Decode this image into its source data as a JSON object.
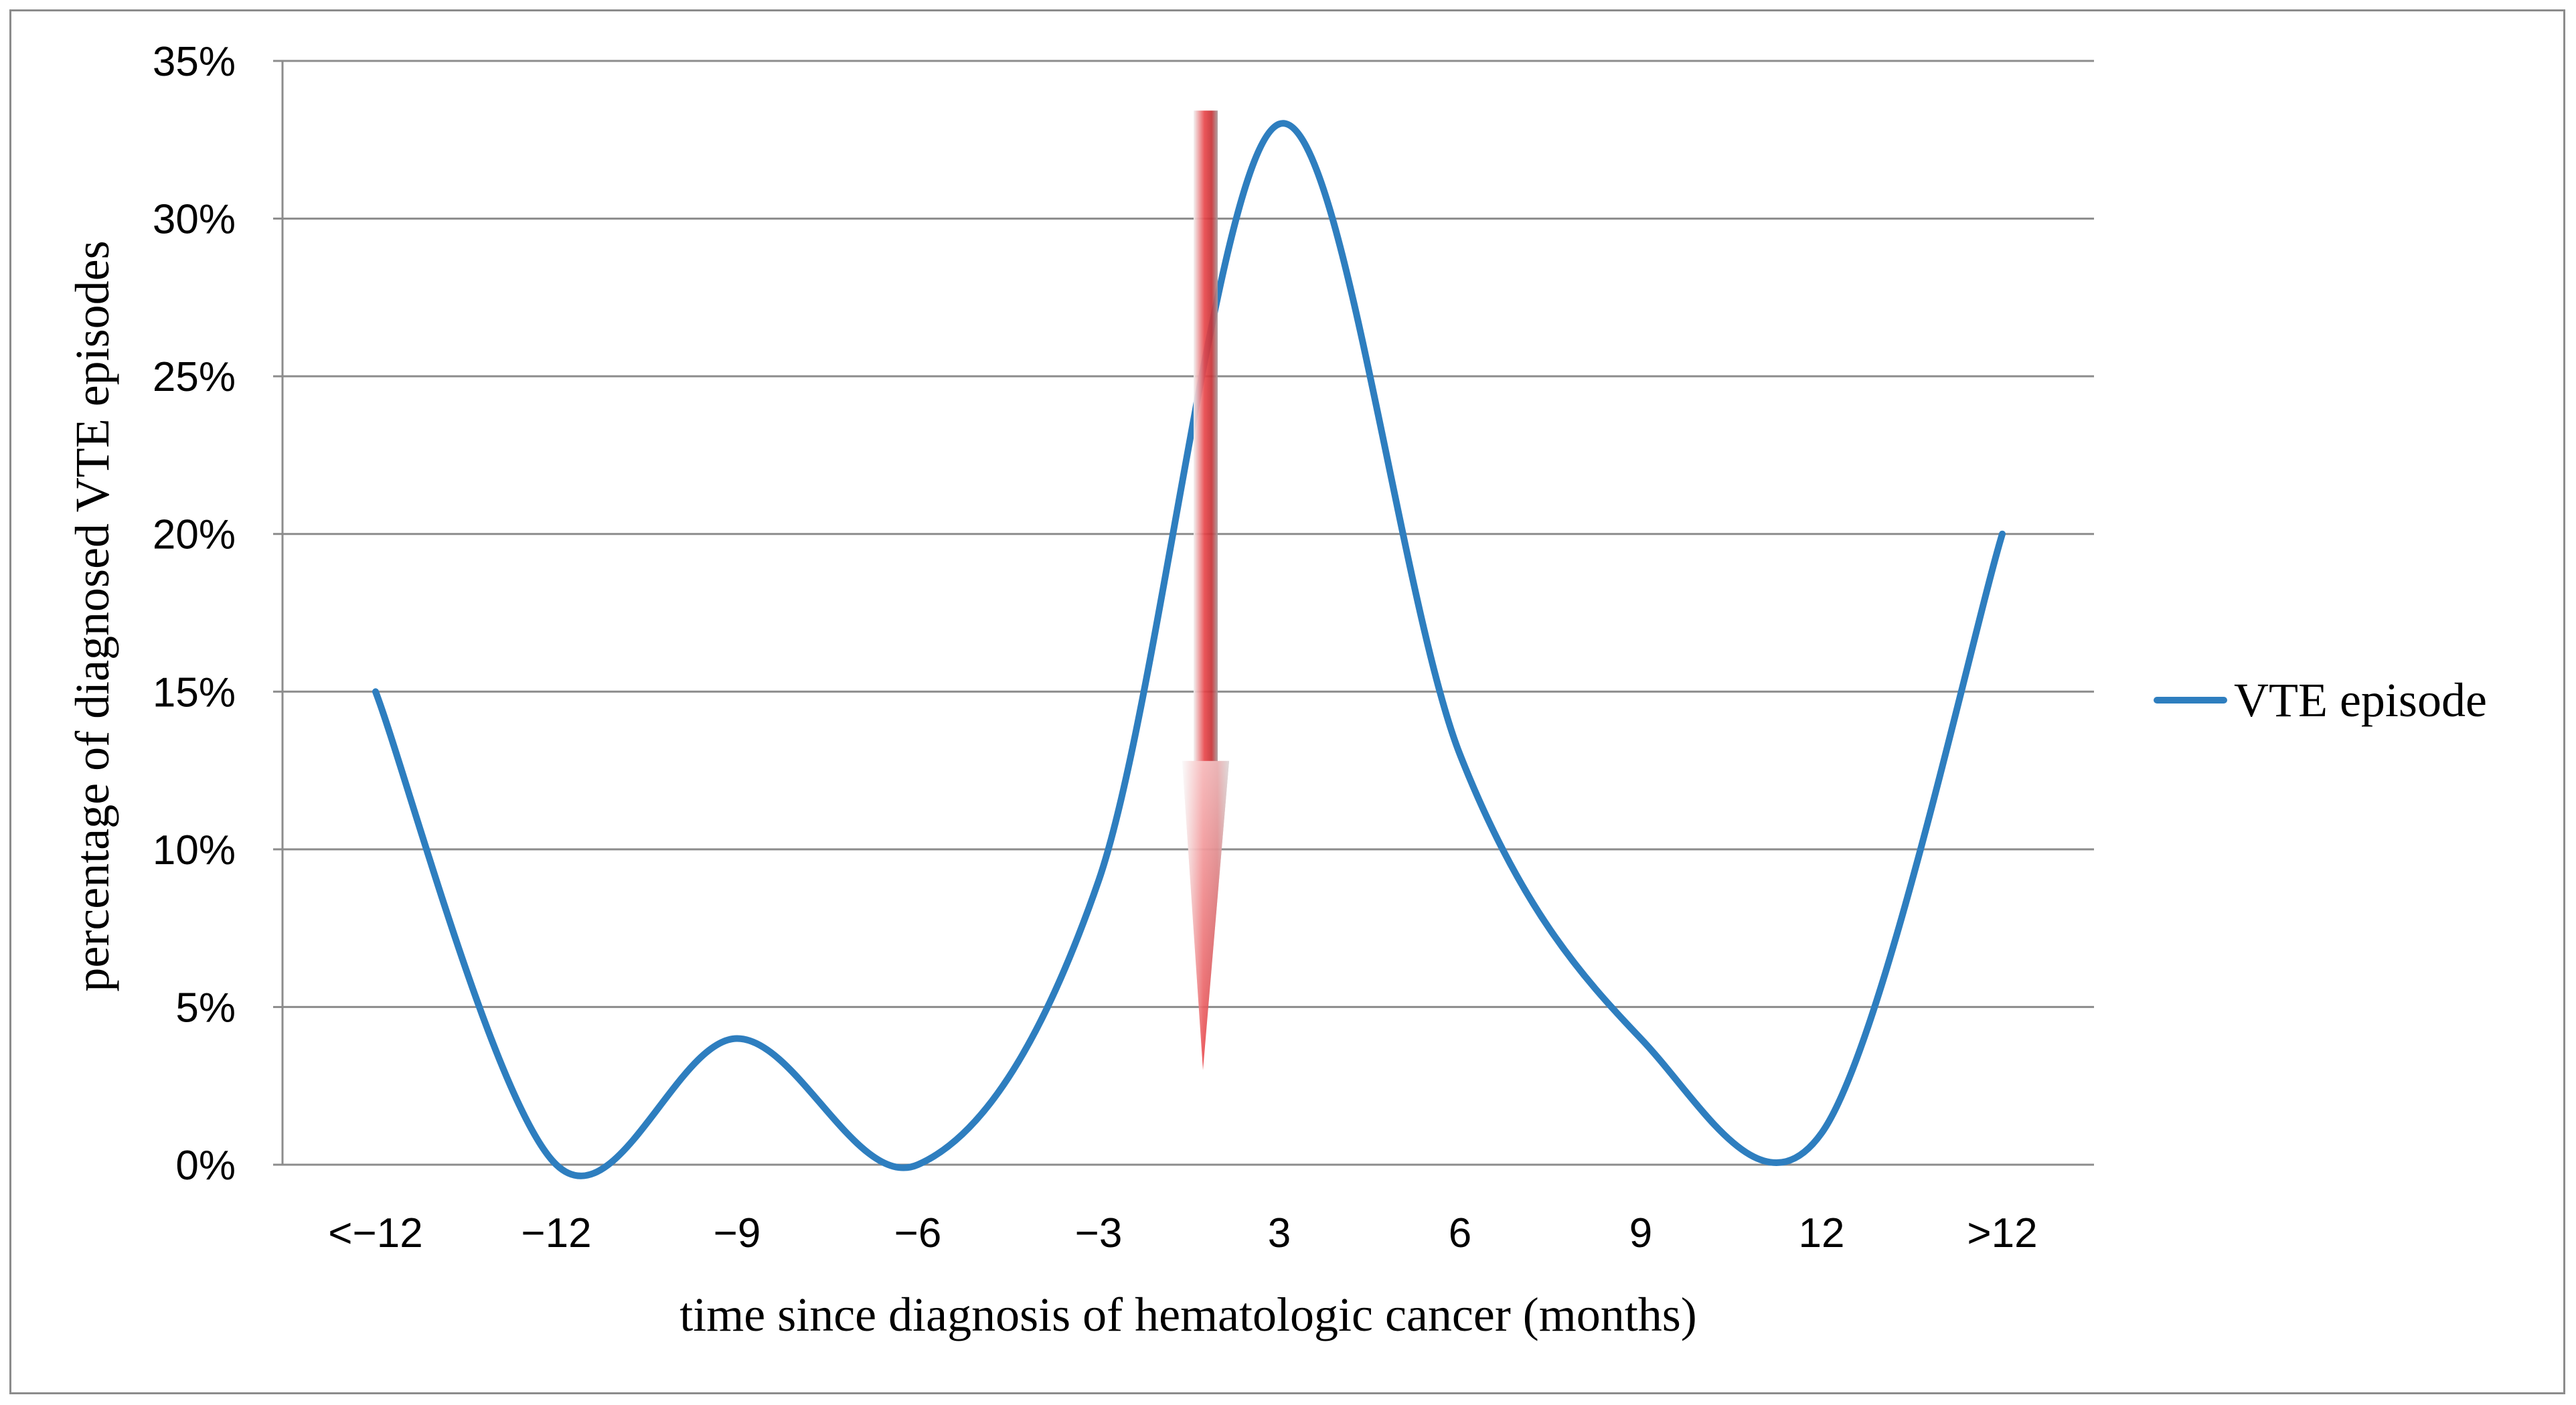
{
  "chart_data": {
    "type": "line",
    "title": "",
    "xlabel": "time since diagnosis of hematologic cancer (months)",
    "ylabel": "percentage of diagnosed VTE episodes",
    "categories": [
      "<−12",
      "−12",
      "−9",
      "−6",
      "−3",
      "3",
      "6",
      "9",
      "12",
      ">12"
    ],
    "series": [
      {
        "name": "VTE episode",
        "color": "#2e7ebf",
        "values": [
          15,
          0,
          4,
          0,
          9,
          33,
          13,
          4,
          1,
          20
        ]
      }
    ],
    "ylim": [
      0,
      35
    ],
    "yticks": [
      0,
      5,
      10,
      15,
      20,
      25,
      30,
      35
    ],
    "ytick_labels": [
      "0%",
      "5%",
      "10%",
      "15%",
      "20%",
      "25%",
      "30%",
      "35%"
    ],
    "y_unit": "%",
    "grid": true,
    "legend_position": "right",
    "smooth": true,
    "annotation": {
      "type": "arrow-down",
      "color": "#e0383c",
      "position_between": [
        "−3",
        "3"
      ],
      "from_value": 33,
      "to_value": 3
    }
  }
}
